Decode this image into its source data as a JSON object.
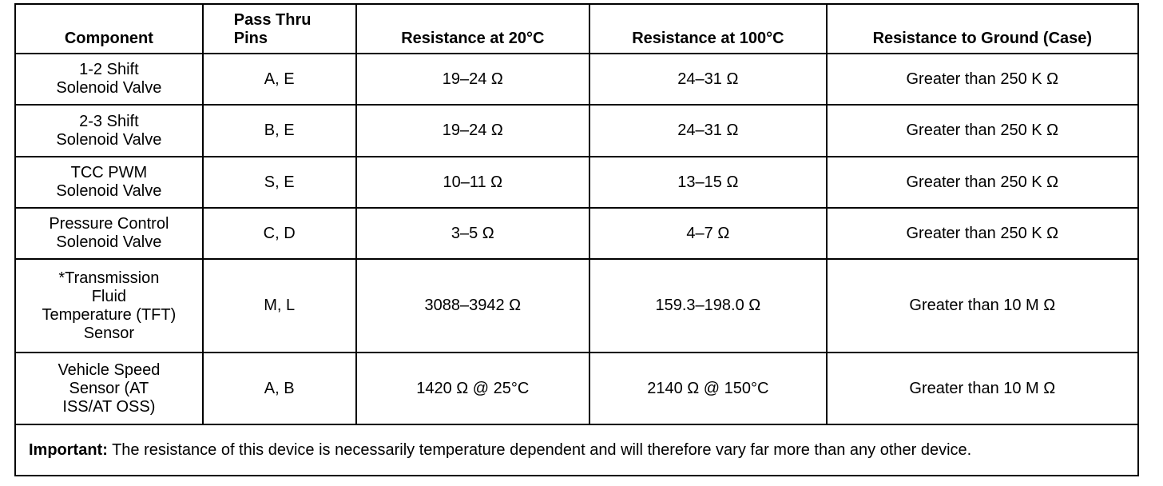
{
  "table": {
    "headers": [
      "Component",
      "Pass Thru\nPins",
      "Resistance at 20°C",
      "Resistance at 100°C",
      "Resistance to Ground (Case)"
    ],
    "rows": [
      [
        "1-2 Shift\nSolenoid Valve",
        "A, E",
        "19–24 Ω",
        "24–31 Ω",
        "Greater than 250 K Ω"
      ],
      [
        "2-3 Shift\nSolenoid Valve",
        "B, E",
        "19–24 Ω",
        "24–31 Ω",
        "Greater than 250 K Ω"
      ],
      [
        "TCC PWM\nSolenoid Valve",
        "S, E",
        "10–11 Ω",
        "13–15 Ω",
        "Greater than 250 K Ω"
      ],
      [
        "Pressure Control\nSolenoid Valve",
        "C, D",
        "3–5 Ω",
        "4–7 Ω",
        "Greater than 250 K Ω"
      ],
      [
        "*Transmission\nFluid\nTemperature (TFT)\nSensor",
        "M, L",
        "3088–3942 Ω",
        "159.3–198.0 Ω",
        "Greater than 10 M Ω"
      ],
      [
        "Vehicle Speed\nSensor (AT\nISS/AT OSS)",
        "A, B",
        "1420 Ω  @ 25°C",
        "2140 Ω  @ 150°C",
        "Greater than 10 M Ω"
      ]
    ],
    "note": {
      "label": "Important:",
      "text": "The resistance of this device is necessarily temperature dependent and will therefore vary far more than any other device."
    }
  }
}
